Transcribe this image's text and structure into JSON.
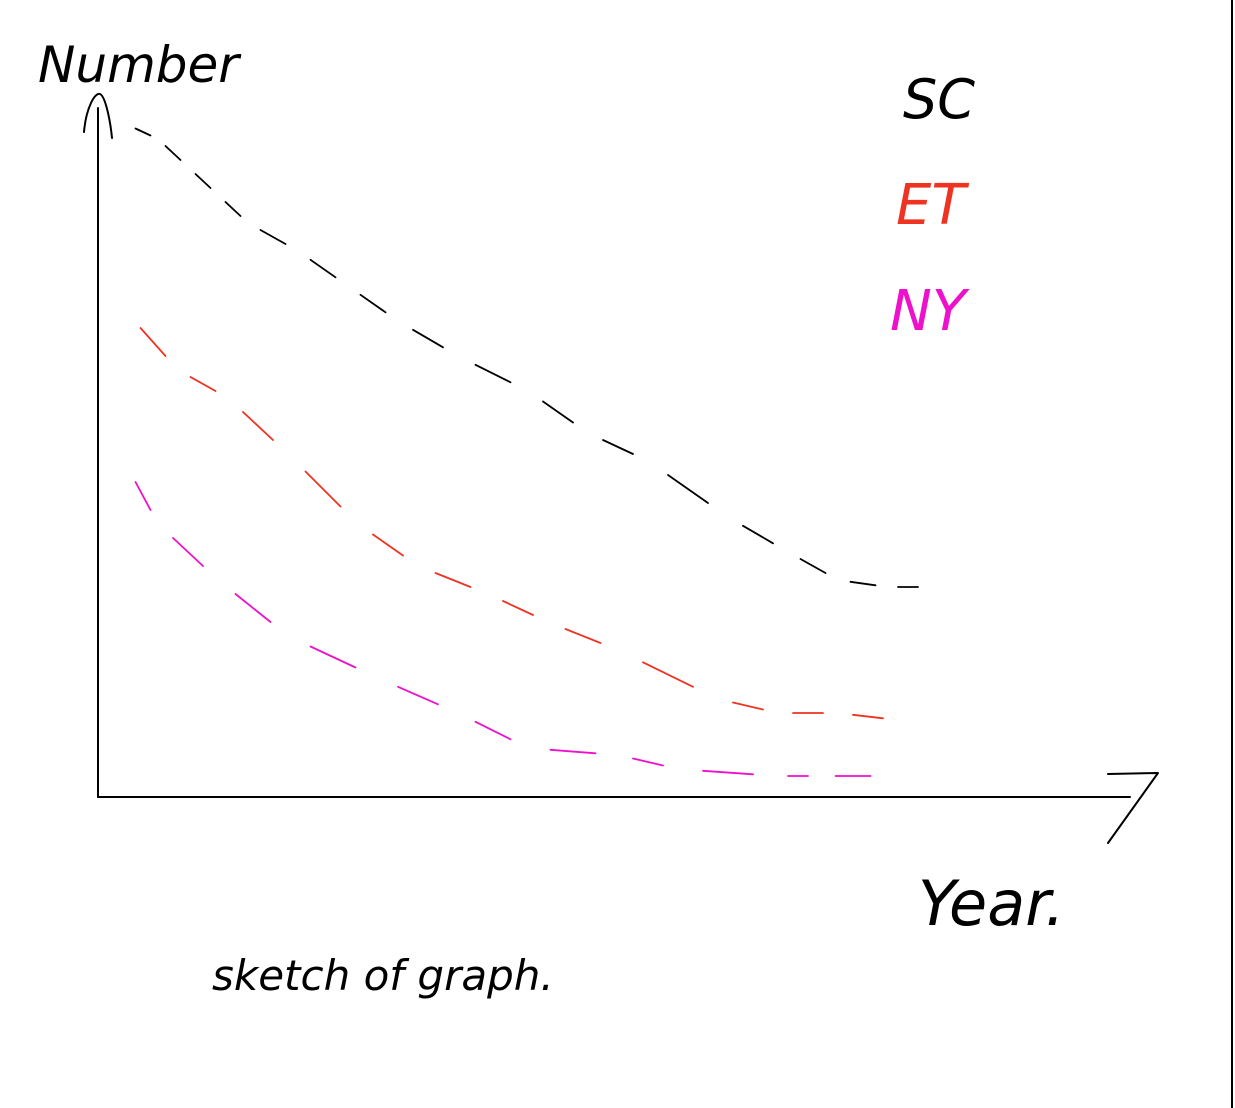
{
  "chart_data": {
    "type": "line",
    "title": "",
    "xlabel": "Year.",
    "ylabel": "Number",
    "caption": "sketch of graph.",
    "xlim": [
      0,
      10
    ],
    "ylim": [
      0,
      10
    ],
    "grid": false,
    "legend_placement": "top-right",
    "axis_ticks": false,
    "series": [
      {
        "name": "SC",
        "color": "#000000",
        "x": [
          0.3,
          0.6,
          0.9,
          1.2,
          1.5,
          2.0,
          2.5,
          3.0,
          3.6,
          4.3,
          4.9,
          5.5,
          6.3,
          6.9,
          7.4,
          7.9,
          8.3
        ],
        "y": [
          9.6,
          9.4,
          9.0,
          8.6,
          8.2,
          7.8,
          7.3,
          6.8,
          6.3,
          5.8,
          5.2,
          4.8,
          4.0,
          3.5,
          3.1,
          3.0,
          3.0
        ]
      },
      {
        "name": "ET",
        "color": "#ee3322",
        "x": [
          0.3,
          0.8,
          1.3,
          1.9,
          2.6,
          3.2,
          3.9,
          4.5,
          5.2,
          6.2,
          6.8,
          7.4,
          8.0
        ],
        "y": [
          6.9,
          6.1,
          5.7,
          4.9,
          3.9,
          3.3,
          2.9,
          2.5,
          2.1,
          1.4,
          1.2,
          1.2,
          1.1
        ]
      },
      {
        "name": "NY",
        "color": "#ee11cc",
        "x": [
          0.3,
          0.6,
          1.2,
          1.9,
          2.8,
          3.6,
          4.3,
          5.2,
          5.8,
          6.8,
          7.2,
          7.9
        ],
        "y": [
          4.7,
          3.9,
          3.1,
          2.3,
          1.7,
          1.2,
          0.7,
          0.6,
          0.4,
          0.3,
          0.3,
          0.3
        ]
      }
    ]
  }
}
